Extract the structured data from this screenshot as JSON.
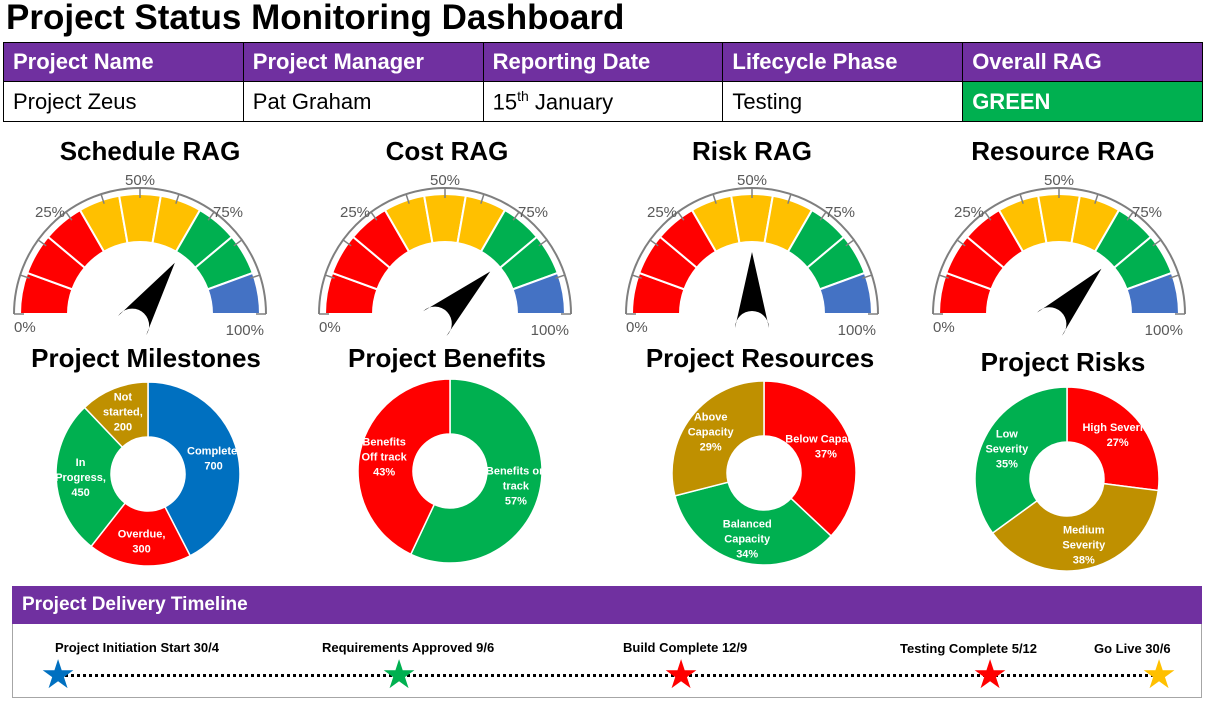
{
  "page_title": "Project Status Monitoring Dashboard",
  "info_table": {
    "headers": [
      "Project Name",
      "Project Manager",
      "Reporting Date",
      "Lifecycle Phase",
      "Overall RAG"
    ],
    "project_name": "Project Zeus",
    "project_manager": "Pat Graham",
    "reporting_date_day": "15",
    "reporting_date_suffix": "th",
    "reporting_date_month": " January",
    "lifecycle_phase": "Testing",
    "overall_rag": "GREEN",
    "overall_rag_color": "#00b050"
  },
  "gauge_scale_labels": {
    "min": "0%",
    "q1": "25%",
    "mid": "50%",
    "q3": "75%",
    "max": "100%"
  },
  "gauge_colors": {
    "red": "#ff0000",
    "amber": "#ffc000",
    "green": "#00b050",
    "blue": "#4472c4",
    "needle": "#000000"
  },
  "gauges": [
    {
      "title": "Schedule RAG",
      "value_fraction": 0.69
    },
    {
      "title": "Cost RAG",
      "value_fraction": 0.76
    },
    {
      "title": "Risk RAG",
      "value_fraction": 0.5
    },
    {
      "title": "Resource RAG",
      "value_fraction": 0.74
    }
  ],
  "chart_data": [
    {
      "type": "pie",
      "title": "Project Milestones",
      "series": [
        {
          "name": "Complete",
          "value": 700,
          "label": [
            "Complete,",
            "700"
          ],
          "color": "#0070c0"
        },
        {
          "name": "Overdue",
          "value": 300,
          "label": [
            "Overdue,",
            "300"
          ],
          "color": "#ff0000"
        },
        {
          "name": "In Progress",
          "value": 450,
          "label": [
            "In",
            "Progress,",
            "450"
          ],
          "color": "#00b050"
        },
        {
          "name": "Not started",
          "value": 200,
          "label": [
            "Not",
            "started,",
            "200"
          ],
          "color": "#bf9000"
        }
      ]
    },
    {
      "type": "pie",
      "title": "Project Benefits",
      "series": [
        {
          "name": "Benefits on track",
          "value": 57,
          "label": [
            "Benefits on",
            "track",
            "57%"
          ],
          "color": "#00b050"
        },
        {
          "name": "Benefits Off track",
          "value": 43,
          "label": [
            "Benefits",
            "Off track",
            "43%"
          ],
          "color": "#ff0000"
        }
      ]
    },
    {
      "type": "pie",
      "title": "Project Resources",
      "series": [
        {
          "name": "Below Capacity",
          "value": 37,
          "label": [
            "Below Capacity",
            "37%"
          ],
          "color": "#ff0000"
        },
        {
          "name": "Balanced Capacity",
          "value": 34,
          "label": [
            "Balanced",
            "Capacity",
            "34%"
          ],
          "color": "#00b050"
        },
        {
          "name": "Above Capacity",
          "value": 29,
          "label": [
            "Above",
            "Capacity",
            "29%"
          ],
          "color": "#bf9000"
        }
      ]
    },
    {
      "type": "pie",
      "title": "Project Risks",
      "series": [
        {
          "name": "High Severity",
          "value": 27,
          "label": [
            "High Severity",
            "27%"
          ],
          "color": "#ff0000"
        },
        {
          "name": "Medium Severity",
          "value": 38,
          "label": [
            "Medium",
            "Severity",
            "38%"
          ],
          "color": "#bf9000"
        },
        {
          "name": "Low Severity",
          "value": 35,
          "label": [
            "Low",
            "Severity",
            "35%"
          ],
          "color": "#00b050"
        }
      ]
    }
  ],
  "timeline": {
    "title": "Project Delivery Timeline",
    "milestones": [
      {
        "label": "Project Initiation Start 30/4",
        "star_color": "#0070c0"
      },
      {
        "label": "Requirements Approved 9/6",
        "star_color": "#00b050"
      },
      {
        "label": "Build Complete 12/9",
        "star_color": "#ff0000"
      },
      {
        "label": "Testing Complete 5/12",
        "star_color": "#ff0000"
      },
      {
        "label": "Go Live 30/6",
        "star_color": "#ffc000"
      }
    ]
  }
}
